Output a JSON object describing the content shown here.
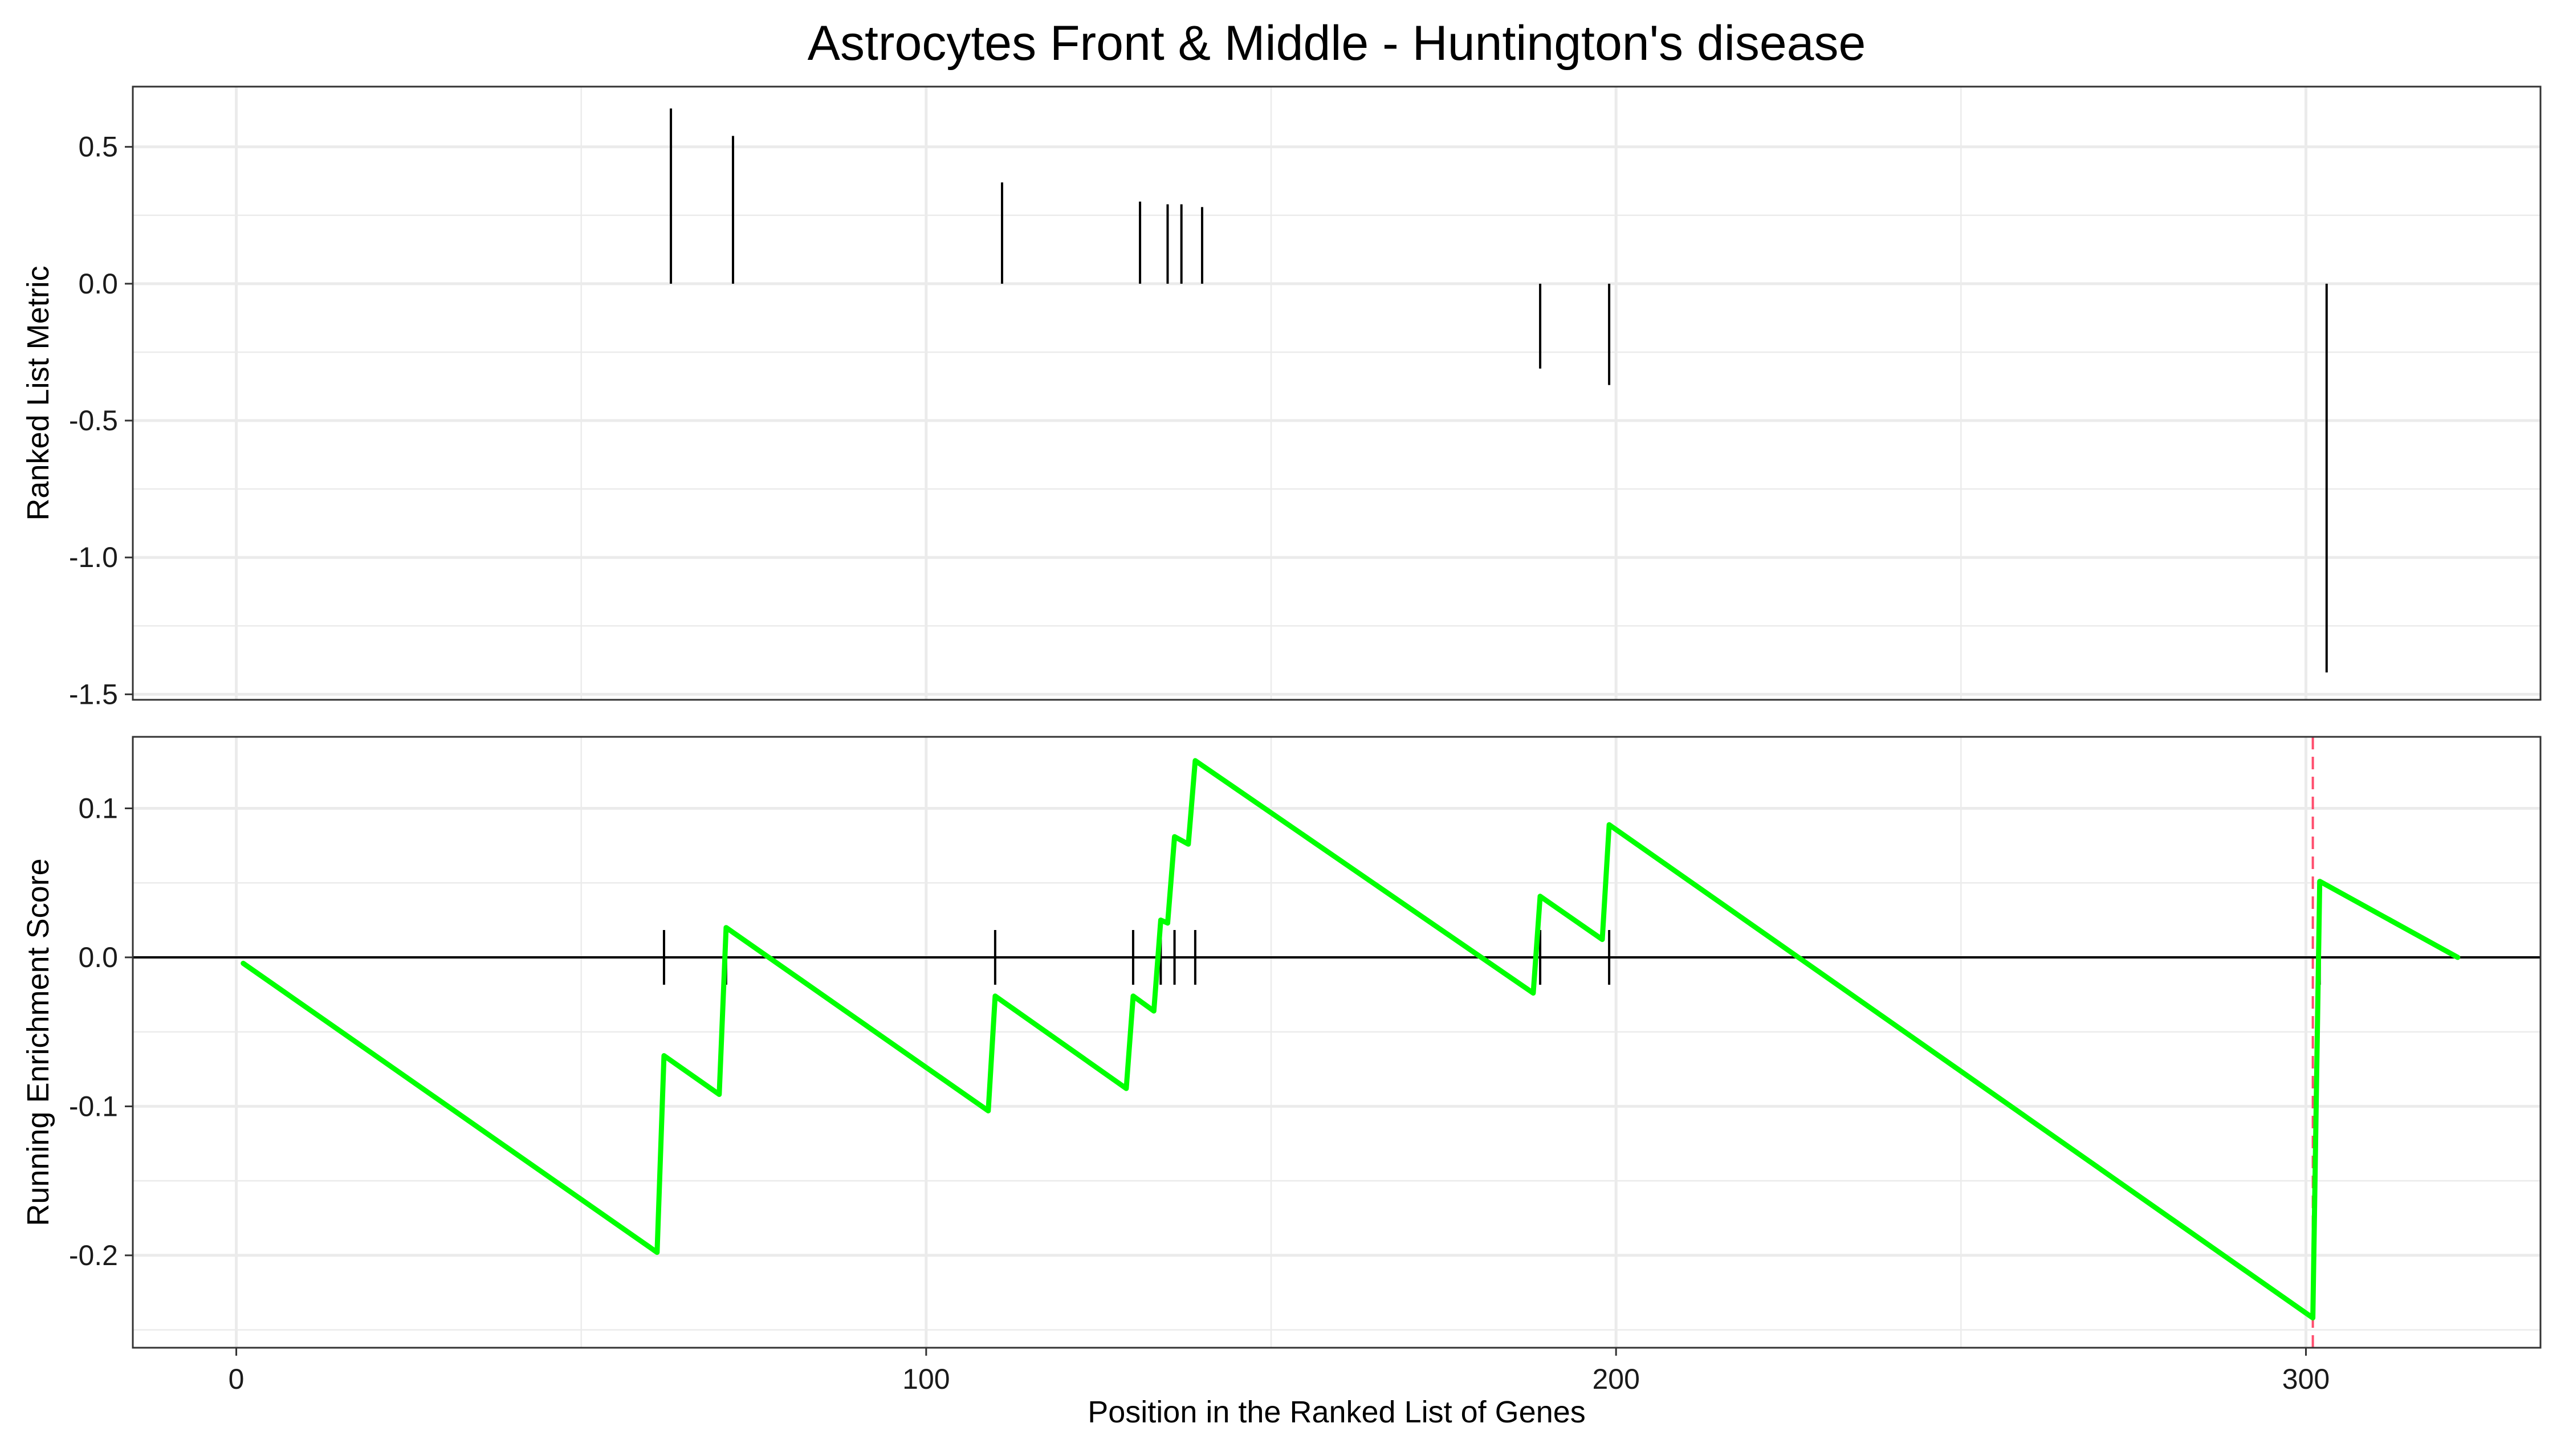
{
  "chart_data": {
    "title": "Astrocytes Front & Middle - Huntington's disease",
    "xlabel": "Position in the Ranked List of Genes",
    "colors": {
      "es_line": "#00ff00",
      "hit_line": "#000000",
      "peak_marker": "#ff4d6d",
      "grid": "#ebebeb",
      "panel_border": "#333333",
      "zero_line": "#000000"
    },
    "x_axis": {
      "xlim": [
        -15,
        334
      ],
      "ticks": [
        0,
        100,
        200,
        300
      ],
      "tick_labels": [
        "0",
        "100",
        "200",
        "300"
      ]
    },
    "panels": [
      {
        "id": "ranked-metric",
        "type": "bar",
        "ylabel": "Ranked List Metric",
        "ylim": [
          -1.52,
          0.72
        ],
        "ticks": [
          0.5,
          0.0,
          -0.5,
          -1.0,
          -1.5
        ],
        "tick_labels": [
          "0.5",
          "0.0",
          "-0.5",
          "-1.0",
          "-1.5"
        ],
        "bars": [
          {
            "x": 63,
            "value": 0.64
          },
          {
            "x": 72,
            "value": 0.54
          },
          {
            "x": 111,
            "value": 0.37
          },
          {
            "x": 131,
            "value": 0.3
          },
          {
            "x": 135,
            "value": 0.29
          },
          {
            "x": 137,
            "value": 0.29
          },
          {
            "x": 140,
            "value": 0.28
          },
          {
            "x": 189,
            "value": -0.31
          },
          {
            "x": 199,
            "value": -0.37
          },
          {
            "x": 303,
            "value": -1.42
          }
        ]
      },
      {
        "id": "running-es",
        "type": "line",
        "ylabel": "Running Enrichment Score",
        "ylim": [
          -0.262,
          0.148
        ],
        "ticks": [
          0.1,
          0.0,
          -0.1,
          -0.2
        ],
        "tick_labels": [
          "0.1",
          "0.0",
          "-0.1",
          "-0.2"
        ],
        "peak_x": 301,
        "series": [
          {
            "x": [
              1,
              61,
              62,
              70,
              71,
              109,
              110,
              129,
              130,
              133,
              134,
              135,
              136,
              138,
              139,
              188,
              189,
              198,
              199,
              301,
              302,
              322
            ],
            "values": [
              -0.004,
              -0.198,
              -0.066,
              -0.092,
              0.02,
              -0.103,
              -0.026,
              -0.088,
              -0.026,
              -0.036,
              0.025,
              0.023,
              0.081,
              0.076,
              0.132,
              -0.024,
              0.041,
              0.012,
              0.089,
              -0.242,
              0.051,
              0.0
            ]
          }
        ],
        "hits": [
          62,
          71,
          110,
          130,
          134,
          136,
          139,
          189,
          199,
          302
        ]
      }
    ]
  }
}
